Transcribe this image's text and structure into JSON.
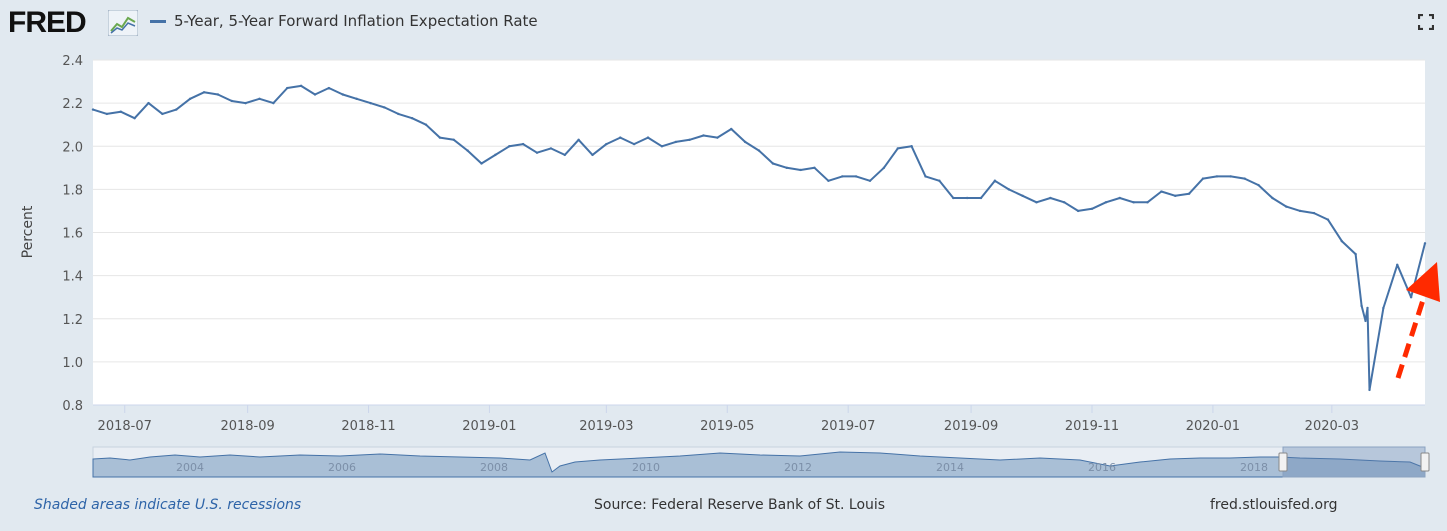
{
  "header": {
    "logo_text": "FRED",
    "logo_graph_icon": "fred-graph-icon",
    "fullscreen_icon": "fullscreen-icon"
  },
  "footer": {
    "recessions_note": "Shaded areas indicate U.S. recessions",
    "source": "Source: Federal Reserve Bank of St. Louis",
    "site": "fred.stlouisfed.org"
  },
  "navigator": {
    "year_labels": [
      "2004",
      "2006",
      "2008",
      "2010",
      "2012",
      "2014",
      "2016",
      "2018"
    ]
  },
  "annotation": {
    "arrow_color": "#ff2a00",
    "arrow_style": "dashed",
    "arrow_icon": "up-right-arrow-icon"
  },
  "colors": {
    "series": "#4572a7",
    "background": "#e1e9f0",
    "plot": "#ffffff"
  },
  "chart_data": {
    "type": "line",
    "title": "5-Year, 5-Year Forward Inflation Expectation Rate",
    "xlabel": "",
    "ylabel": "Percent",
    "ylim": [
      0.8,
      2.4
    ],
    "yticks": [
      "0.8",
      "1.0",
      "1.2",
      "1.4",
      "1.6",
      "1.8",
      "2.0",
      "2.2",
      "2.4"
    ],
    "xlim": [
      "2018-06-15",
      "2020-04-17"
    ],
    "xticks": [
      "2018-07",
      "2018-09",
      "2018-11",
      "2019-01",
      "2019-03",
      "2019-05",
      "2019-07",
      "2019-09",
      "2019-11",
      "2020-01",
      "2020-03"
    ],
    "grid": true,
    "legend": "top-left",
    "series": [
      {
        "name": "5-Year, 5-Year Forward Inflation Expectation Rate",
        "x": [
          "2018-06-15",
          "2018-06-22",
          "2018-06-29",
          "2018-07-06",
          "2018-07-13",
          "2018-07-20",
          "2018-07-27",
          "2018-08-03",
          "2018-08-10",
          "2018-08-17",
          "2018-08-24",
          "2018-08-31",
          "2018-09-07",
          "2018-09-14",
          "2018-09-21",
          "2018-09-28",
          "2018-10-05",
          "2018-10-12",
          "2018-10-19",
          "2018-10-26",
          "2018-11-02",
          "2018-11-09",
          "2018-11-16",
          "2018-11-23",
          "2018-11-30",
          "2018-12-07",
          "2018-12-14",
          "2018-12-21",
          "2018-12-28",
          "2019-01-04",
          "2019-01-11",
          "2019-01-18",
          "2019-01-25",
          "2019-02-01",
          "2019-02-08",
          "2019-02-15",
          "2019-02-22",
          "2019-03-01",
          "2019-03-08",
          "2019-03-15",
          "2019-03-22",
          "2019-03-29",
          "2019-04-05",
          "2019-04-12",
          "2019-04-19",
          "2019-04-26",
          "2019-05-03",
          "2019-05-10",
          "2019-05-17",
          "2019-05-24",
          "2019-05-31",
          "2019-06-07",
          "2019-06-14",
          "2019-06-21",
          "2019-06-28",
          "2019-07-05",
          "2019-07-12",
          "2019-07-19",
          "2019-07-26",
          "2019-08-02",
          "2019-08-09",
          "2019-08-16",
          "2019-08-23",
          "2019-08-30",
          "2019-09-06",
          "2019-09-13",
          "2019-09-20",
          "2019-09-27",
          "2019-10-04",
          "2019-10-11",
          "2019-10-18",
          "2019-10-25",
          "2019-11-01",
          "2019-11-08",
          "2019-11-15",
          "2019-11-22",
          "2019-11-29",
          "2019-12-06",
          "2019-12-13",
          "2019-12-20",
          "2019-12-27",
          "2020-01-03",
          "2020-01-10",
          "2020-01-17",
          "2020-01-24",
          "2020-01-31",
          "2020-02-07",
          "2020-02-14",
          "2020-02-21",
          "2020-02-28",
          "2020-03-06",
          "2020-03-13",
          "2020-03-16",
          "2020-03-18",
          "2020-03-19",
          "2020-03-20",
          "2020-03-27",
          "2020-04-03",
          "2020-04-10",
          "2020-04-17"
        ],
        "y": [
          2.17,
          2.15,
          2.16,
          2.13,
          2.2,
          2.15,
          2.17,
          2.22,
          2.25,
          2.24,
          2.21,
          2.2,
          2.22,
          2.2,
          2.27,
          2.28,
          2.24,
          2.27,
          2.24,
          2.22,
          2.2,
          2.18,
          2.15,
          2.13,
          2.1,
          2.04,
          2.03,
          1.98,
          1.92,
          1.96,
          2.0,
          2.01,
          1.97,
          1.99,
          1.96,
          2.03,
          1.96,
          2.01,
          2.04,
          2.01,
          2.04,
          2.0,
          2.02,
          2.03,
          2.05,
          2.04,
          2.08,
          2.02,
          1.98,
          1.92,
          1.9,
          1.89,
          1.9,
          1.84,
          1.86,
          1.86,
          1.84,
          1.9,
          1.99,
          2.0,
          1.86,
          1.84,
          1.76,
          1.76,
          1.76,
          1.84,
          1.8,
          1.77,
          1.74,
          1.76,
          1.74,
          1.7,
          1.71,
          1.74,
          1.76,
          1.74,
          1.74,
          1.79,
          1.77,
          1.78,
          1.85,
          1.86,
          1.86,
          1.85,
          1.82,
          1.76,
          1.72,
          1.7,
          1.69,
          1.66,
          1.56,
          1.5,
          1.26,
          1.19,
          1.25,
          0.87,
          1.25,
          1.45,
          1.3,
          1.55
        ]
      }
    ]
  }
}
